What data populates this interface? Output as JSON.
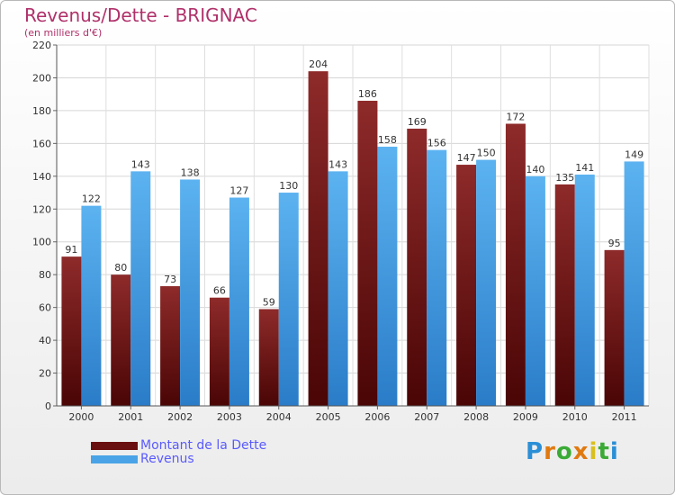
{
  "header": {
    "title": "Revenus/Dette - BRIGNAC",
    "subtitle": "(en milliers d'€)"
  },
  "chart_data": {
    "type": "bar",
    "categories": [
      "2000",
      "2001",
      "2002",
      "2003",
      "2004",
      "2005",
      "2006",
      "2007",
      "2008",
      "2009",
      "2010",
      "2011"
    ],
    "series": [
      {
        "name": "Montant de la Dette",
        "values": [
          91,
          80,
          73,
          66,
          59,
          204,
          186,
          169,
          147,
          172,
          135,
          95
        ],
        "color": "#7a1a1a"
      },
      {
        "name": "Revenus",
        "values": [
          122,
          143,
          138,
          127,
          130,
          143,
          158,
          156,
          150,
          140,
          141,
          149
        ],
        "color": "#4aa3e6"
      }
    ],
    "ylim": [
      0,
      220
    ],
    "yticks": [
      0,
      20,
      40,
      60,
      80,
      100,
      120,
      140,
      160,
      180,
      200,
      220
    ],
    "grid": true,
    "data_labels": true,
    "legend": "bottom-left"
  },
  "branding": {
    "logo_letters": [
      "P",
      "r",
      "o",
      "x",
      "i",
      "t",
      "i"
    ],
    "logo_colors": [
      "#2a8fd6",
      "#e07a10",
      "#3aaa35",
      "#e07a10",
      "#d8c020",
      "#3aaa35",
      "#2a8fd6"
    ]
  }
}
